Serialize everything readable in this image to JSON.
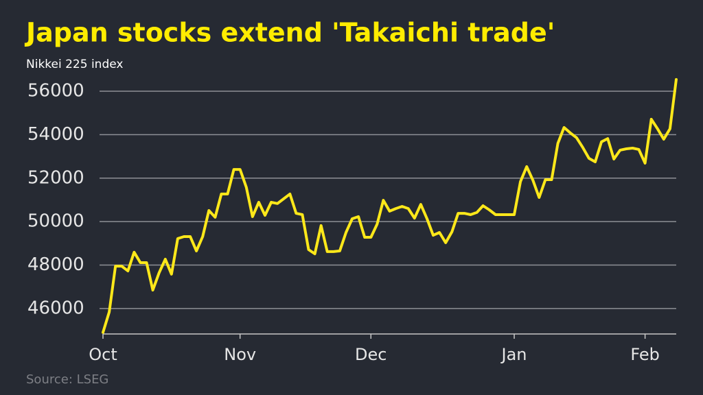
{
  "chart_data": {
    "type": "line",
    "title": "Japan stocks extend 'Takaichi trade'",
    "subtitle": "Nikkei 225 index",
    "source": "Source: LSEG",
    "categories": [
      "Oct",
      null,
      null,
      null,
      null,
      null,
      null,
      null,
      null,
      null,
      null,
      null,
      null,
      null,
      null,
      null,
      null,
      null,
      null,
      null,
      null,
      null,
      "Nov",
      null,
      null,
      null,
      null,
      null,
      null,
      null,
      null,
      null,
      null,
      null,
      null,
      null,
      null,
      null,
      null,
      null,
      null,
      null,
      null,
      "Dec",
      null,
      null,
      null,
      null,
      null,
      null,
      null,
      null,
      null,
      null,
      null,
      null,
      null,
      null,
      null,
      null,
      null,
      null,
      null,
      null,
      null,
      null,
      "Jan",
      null,
      null,
      null,
      null,
      null,
      null,
      null,
      null,
      null,
      null,
      null,
      null,
      null,
      null,
      null,
      null,
      null,
      null,
      null,
      null,
      "Feb",
      null,
      null,
      null,
      null,
      null
    ],
    "series": [
      {
        "name": "Nikkei 225",
        "color": "#ffe81a",
        "values": [
          44900,
          45840,
          47950,
          47950,
          47730,
          48590,
          48110,
          48110,
          46850,
          47640,
          48270,
          47580,
          49220,
          49310,
          49310,
          48650,
          49310,
          50510,
          50200,
          51270,
          51270,
          52400,
          52400,
          51580,
          50230,
          50890,
          50290,
          50890,
          50830,
          51050,
          51270,
          50380,
          50320,
          48710,
          48520,
          49820,
          48620,
          48620,
          48650,
          49500,
          50130,
          50230,
          49280,
          49280,
          49880,
          50980,
          50480,
          50600,
          50700,
          50600,
          50160,
          50790,
          50130,
          49370,
          49500,
          49030,
          49530,
          50380,
          50380,
          50320,
          50420,
          50730,
          50540,
          50320,
          50320,
          50320,
          50320,
          51840,
          52530,
          51900,
          51110,
          51930,
          51930,
          53600,
          54330,
          54080,
          53860,
          53410,
          52910,
          52750,
          53670,
          53820,
          52880,
          53290,
          53350,
          53380,
          53320,
          52690,
          54710,
          54270,
          53790,
          54270,
          56540
        ]
      }
    ],
    "ylim": [
      44830,
      56700
    ],
    "yticks": [
      46000,
      48000,
      50000,
      52000,
      54000,
      56000
    ],
    "grid": true
  }
}
